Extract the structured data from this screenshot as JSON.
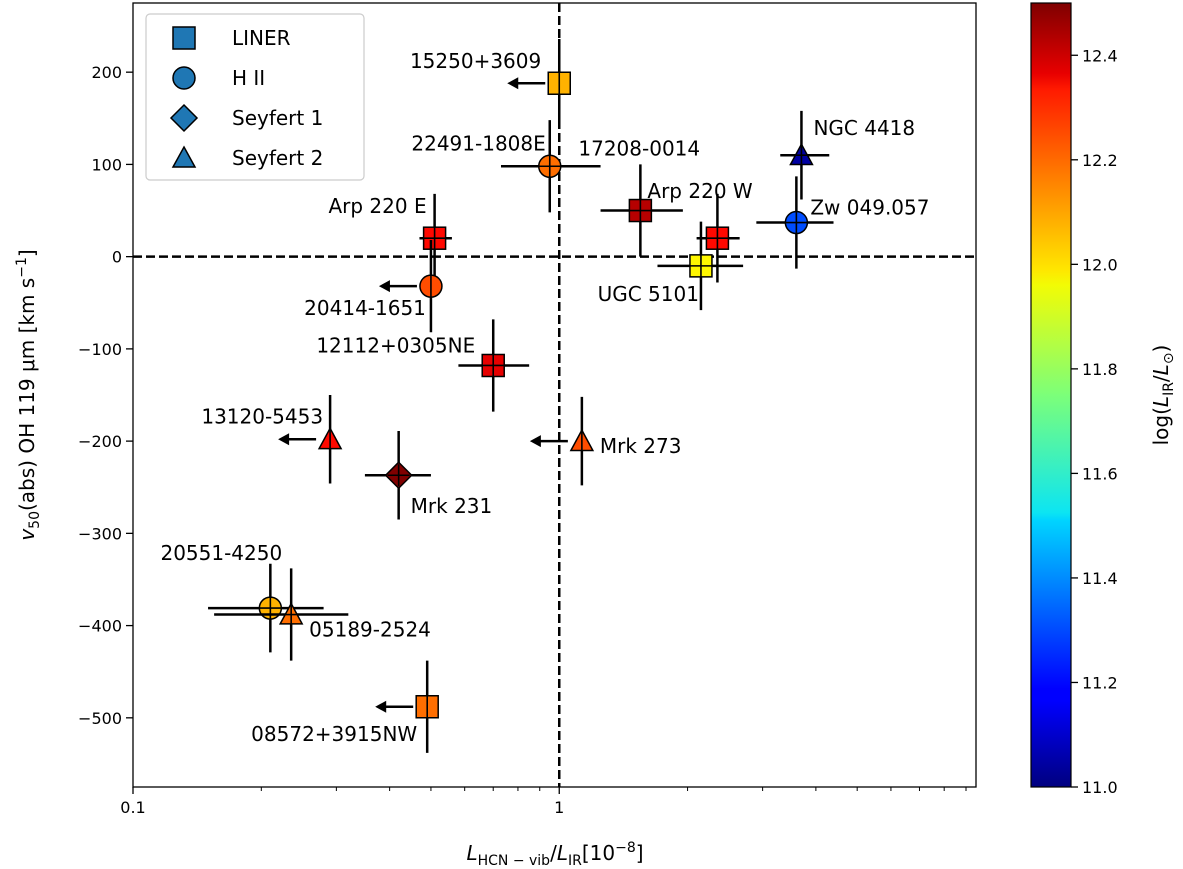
{
  "chart_data": {
    "type": "scatter",
    "xlabel": "L_HCN−vib/L_IR [10^−8]",
    "ylabel": "v50(abs) OH 119 μm [km s^−1]",
    "colorbar_label": "log(L_IR/L_⊙)",
    "xscale": "log",
    "xlim": [
      0.1,
      9.5
    ],
    "ylim": [
      -575,
      275
    ],
    "x_ticks": [
      0.1,
      1
    ],
    "x_tick_labels": [
      "0.1",
      "1"
    ],
    "y_ticks": [
      -500,
      -400,
      -300,
      -200,
      -100,
      0,
      100,
      200
    ],
    "y_tick_labels": [
      "−500",
      "−400",
      "−300",
      "−200",
      "−100",
      "0",
      "100",
      "200"
    ],
    "colorbar_range": [
      11.0,
      12.5
    ],
    "colorbar_ticks": [
      11.0,
      11.2,
      11.4,
      11.6,
      11.8,
      12.0,
      12.2,
      12.4
    ],
    "colorbar_tick_labels": [
      "11.0",
      "11.2",
      "11.4",
      "11.6",
      "11.8",
      "12.0",
      "12.2",
      "12.4"
    ],
    "reference_lines": {
      "x": 1,
      "y": 0,
      "style": "dashed"
    },
    "grid": false,
    "legend_position": "top-left",
    "legend": [
      {
        "label": "LINER",
        "marker": "square"
      },
      {
        "label": "H II",
        "marker": "circle"
      },
      {
        "label": "Seyfert 1",
        "marker": "diamond"
      },
      {
        "label": "Seyfert 2",
        "marker": "triangle"
      }
    ],
    "legend_color": "#1f77b4",
    "points": [
      {
        "name": "15250+3609",
        "x": 1.0,
        "y": 188,
        "yerr": 48,
        "upper_limit": true,
        "marker": "square",
        "logLIR": 12.05,
        "label_anchor": "end",
        "label_dx": -18,
        "label_dy": -15
      },
      {
        "name": "22491-1808E",
        "x": 0.95,
        "y": 98,
        "xerr": [
          0.22,
          0.3
        ],
        "yerr": 50,
        "upper_limit": false,
        "marker": "circle",
        "logLIR": 12.15,
        "label_anchor": "end",
        "label_dx": -4,
        "label_dy": -16
      },
      {
        "name": "17208-0014",
        "x": 1.55,
        "y": 50,
        "xerr": [
          0.3,
          0.4
        ],
        "yerr": 50,
        "upper_limit": false,
        "marker": "square",
        "logLIR": 12.42,
        "label_anchor": "start",
        "label_dx": -62,
        "label_dy": -55
      },
      {
        "name": "Arp 220 W",
        "x": 2.35,
        "y": 20,
        "xerr": [
          0.25,
          0.3
        ],
        "yerr": 48,
        "upper_limit": false,
        "marker": "square",
        "logLIR": 12.3,
        "label_anchor": "start",
        "label_dx": -70,
        "label_dy": -40
      },
      {
        "name": "NGC 4418",
        "x": 3.7,
        "y": 110,
        "xerr": [
          0.4,
          0.6
        ],
        "yerr": 48,
        "upper_limit": false,
        "marker": "triangle",
        "logLIR": 11.05,
        "label_anchor": "start",
        "label_dx": 12,
        "label_dy": -20
      },
      {
        "name": "Zw 049.057",
        "x": 3.6,
        "y": 37,
        "xerr": [
          0.7,
          0.8
        ],
        "yerr": 50,
        "upper_limit": false,
        "marker": "circle",
        "logLIR": 11.3,
        "label_anchor": "start",
        "label_dx": 14,
        "label_dy": -8
      },
      {
        "name": "UGC 5101",
        "x": 2.15,
        "y": -10,
        "xerr": [
          0.45,
          0.55
        ],
        "yerr": 48,
        "upper_limit": false,
        "marker": "square",
        "logLIR": 11.95,
        "label_anchor": "end",
        "label_dx": -2,
        "label_dy": 35
      },
      {
        "name": "Arp 220 E",
        "x": 0.51,
        "y": 20,
        "xerr": [
          0.04,
          0.05
        ],
        "yerr": 48,
        "upper_limit": false,
        "marker": "square",
        "logLIR": 12.3,
        "label_anchor": "end",
        "label_dx": -8,
        "label_dy": -25
      },
      {
        "name": "20414-1651",
        "x": 0.5,
        "y": -32,
        "yerr": 50,
        "upper_limit": true,
        "marker": "circle",
        "logLIR": 12.2,
        "label_anchor": "end",
        "label_dx": -5,
        "label_dy": 29
      },
      {
        "name": "12112+0305NE",
        "x": 0.7,
        "y": -118,
        "xerr": [
          0.12,
          0.15
        ],
        "yerr": 50,
        "upper_limit": false,
        "marker": "square",
        "logLIR": 12.35,
        "label_anchor": "end",
        "label_dx": -18,
        "label_dy": -13
      },
      {
        "name": "13120-5453",
        "x": 0.29,
        "y": -198,
        "yerr": 48,
        "upper_limit": true,
        "marker": "triangle",
        "logLIR": 12.3,
        "label_anchor": "end",
        "label_dx": -7,
        "label_dy": -16
      },
      {
        "name": "Mrk 231",
        "x": 0.42,
        "y": -237,
        "xerr": [
          0.07,
          0.08
        ],
        "yerr": 48,
        "upper_limit": false,
        "marker": "diamond",
        "logLIR": 12.5,
        "label_anchor": "start",
        "label_dx": 12,
        "label_dy": 38
      },
      {
        "name": "Mrk 273",
        "x": 1.13,
        "y": -200,
        "yerr": 48,
        "upper_limit": true,
        "marker": "triangle",
        "logLIR": 12.2,
        "label_anchor": "start",
        "label_dx": 18,
        "label_dy": 12
      },
      {
        "name": "20551-4250",
        "x": 0.21,
        "y": -381,
        "xerr": [
          0.06,
          0.07
        ],
        "yerr": 48,
        "upper_limit": false,
        "marker": "circle",
        "logLIR": 12.05,
        "label_anchor": "middle",
        "label_dx": -49,
        "label_dy": -48
      },
      {
        "name": "05189-2524",
        "x": 0.235,
        "y": -388,
        "xerr": [
          0.08,
          0.085
        ],
        "yerr": 50,
        "upper_limit": false,
        "marker": "triangle",
        "logLIR": 12.15,
        "label_anchor": "start",
        "label_dx": 18,
        "label_dy": 22
      },
      {
        "name": "08572+3915NW",
        "x": 0.49,
        "y": -488,
        "yerr": 50,
        "upper_limit": true,
        "marker": "square",
        "logLIR": 12.15,
        "label_anchor": "end",
        "label_dx": -10,
        "label_dy": 34
      }
    ]
  }
}
